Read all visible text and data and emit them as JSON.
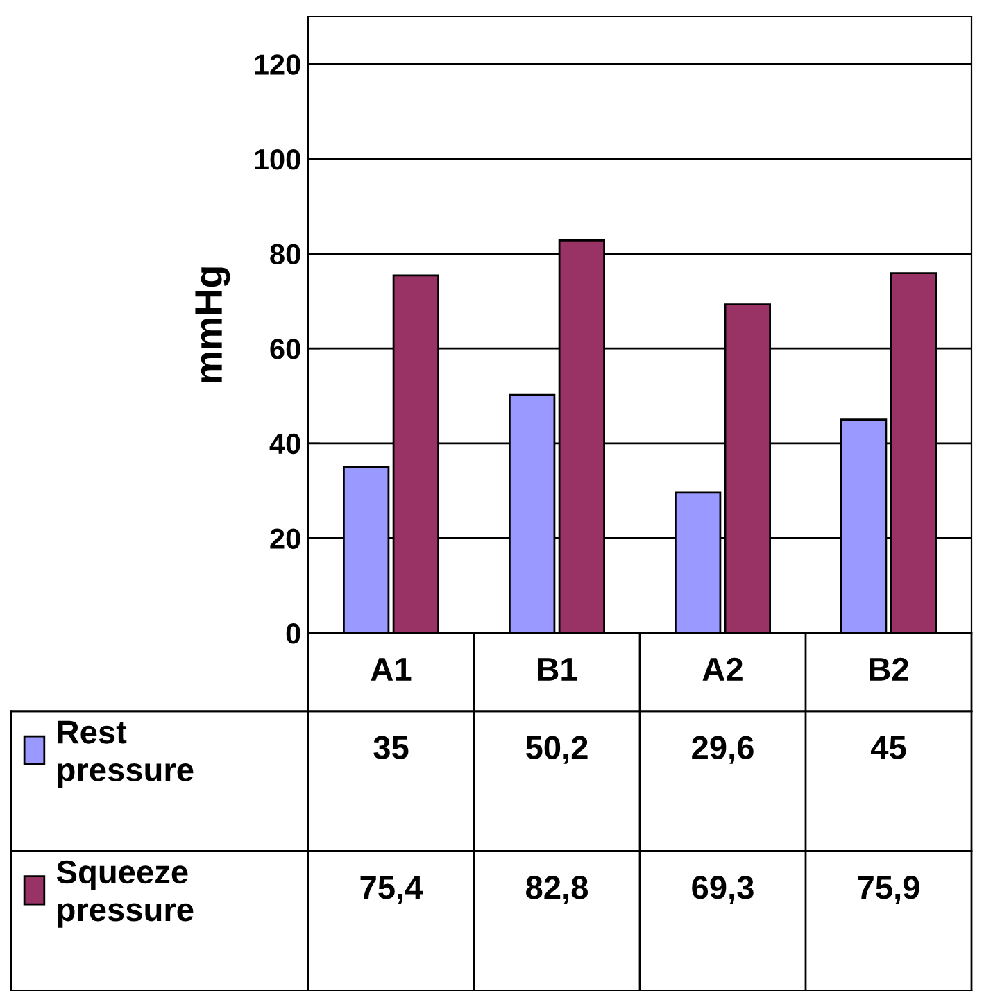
{
  "chart_data": {
    "type": "bar",
    "ylabel": "mmHg",
    "categories": [
      "A1",
      "B1",
      "A2",
      "B2"
    ],
    "series": [
      {
        "name": "Rest pressure",
        "color": "#9999ff",
        "values": [
          35,
          50.2,
          29.6,
          45
        ],
        "value_labels": [
          "35",
          "50,2",
          "29,6",
          "45"
        ]
      },
      {
        "name": "Squeeze pressure",
        "color": "#993366",
        "values": [
          75.4,
          82.8,
          69.3,
          75.9
        ],
        "value_labels": [
          "75,4",
          "82,8",
          "69,3",
          "75,9"
        ]
      }
    ],
    "ylim": [
      0,
      130
    ],
    "yticks": [
      0,
      20,
      40,
      60,
      80,
      100,
      120
    ],
    "grid": "y",
    "legend": "bottom"
  }
}
